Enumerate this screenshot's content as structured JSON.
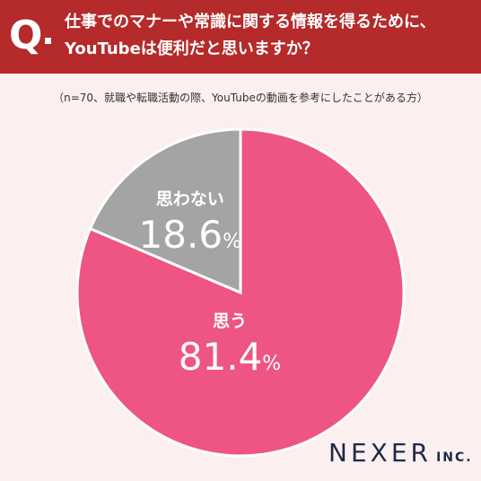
{
  "header": {
    "q_mark": "Q",
    "title_line1": "仕事でのマナーや常識に関する情報を得るために、",
    "title_line2": "YouTubeは便利だと思いますか？"
  },
  "subtitle": "（n=70、就職や転職活動の際、YouTubeの動画を参考にしたことがある方）",
  "colors": {
    "header_bg": "#b52a2a",
    "yes": "#ee5582",
    "no": "#a4a4a4",
    "background": "#fcefef"
  },
  "chart_data": {
    "type": "pie",
    "start": "12 o'clock, clockwise",
    "slices": [
      {
        "label": "思う",
        "value": 81.4,
        "display": "81.4",
        "unit": "%"
      },
      {
        "label": "思わない",
        "value": 18.6,
        "display": "18.6",
        "unit": "%"
      }
    ]
  },
  "brand": {
    "name": "NEXER",
    "suffix": "INC."
  }
}
